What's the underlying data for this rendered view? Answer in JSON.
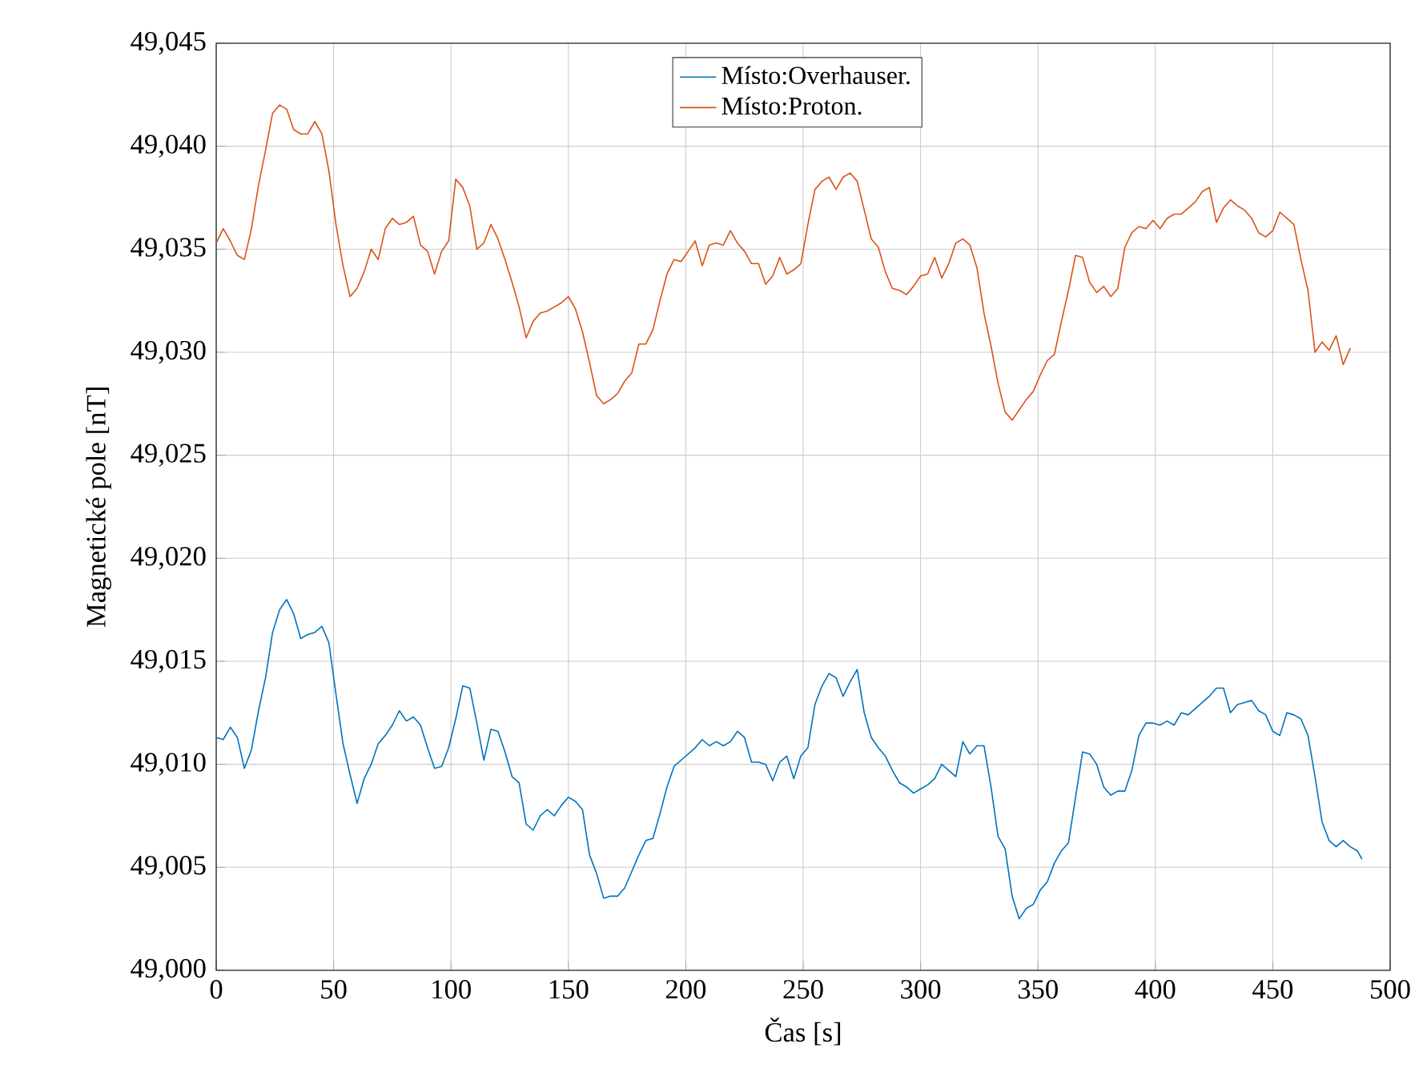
{
  "chart_data": {
    "type": "line",
    "xlabel": "Čas [s]",
    "ylabel": "Magnetické pole [nT]",
    "x": [
      0,
      3,
      6,
      9,
      12,
      15,
      18,
      21,
      24,
      27,
      30,
      33,
      36,
      39,
      42,
      45,
      48,
      51,
      54,
      57,
      60,
      63,
      66,
      69,
      72,
      75,
      78,
      81,
      84,
      87,
      90,
      93,
      96,
      99,
      102,
      105,
      108,
      111,
      114,
      117,
      120,
      123,
      126,
      129,
      132,
      135,
      138,
      141,
      144,
      147,
      150,
      153,
      156,
      159,
      162,
      165,
      168,
      171,
      174,
      177,
      180,
      183,
      186,
      189,
      192,
      195,
      198,
      201,
      204,
      207,
      210,
      213,
      216,
      219,
      222,
      225,
      228,
      231,
      234,
      237,
      240,
      243,
      246,
      249,
      252,
      255,
      258,
      261,
      264,
      267,
      270,
      273,
      276,
      279,
      282,
      285,
      288,
      291,
      294,
      297,
      300,
      303,
      306,
      309,
      312,
      315,
      318,
      321,
      324,
      327,
      330,
      333,
      336,
      339,
      342,
      345,
      348,
      351,
      354,
      357,
      360,
      363,
      366,
      369,
      372,
      375,
      378,
      381,
      384,
      387,
      390,
      393,
      396,
      399,
      402,
      405,
      408,
      411,
      414,
      417,
      420,
      423,
      426,
      429,
      432,
      435,
      438,
      441,
      444,
      447,
      450,
      453,
      456,
      459,
      462,
      465,
      468,
      471,
      474,
      477,
      480,
      483
    ],
    "series": [
      {
        "name": "Místo:Overhauser.",
        "color": "#0072bd",
        "x": [
          0,
          3,
          6,
          9,
          12,
          15,
          18,
          21,
          24,
          27,
          30,
          33,
          36,
          39,
          42,
          45,
          48,
          51,
          54,
          57,
          60,
          63,
          66,
          69,
          72,
          75,
          78,
          81,
          84,
          87,
          90,
          93,
          96,
          99,
          102,
          105,
          108,
          111,
          114,
          117,
          120,
          123,
          126,
          129,
          132,
          135,
          138,
          141,
          144,
          147,
          150,
          153,
          156,
          159,
          162,
          165,
          168,
          171,
          174,
          177,
          180,
          183,
          186,
          189,
          192,
          195,
          198,
          201,
          204,
          207,
          210,
          213,
          216,
          219,
          222,
          225,
          228,
          231,
          234,
          237,
          240,
          243,
          246,
          249,
          252,
          255,
          258,
          261,
          264,
          267,
          270,
          273,
          276,
          279,
          282,
          285,
          288,
          291,
          294,
          297,
          300,
          303,
          306,
          309,
          312,
          315,
          318,
          321,
          324,
          327,
          330,
          333,
          336,
          339,
          342,
          345,
          348,
          351,
          354,
          357,
          360,
          363,
          366,
          369,
          372,
          375,
          378,
          381,
          384,
          387,
          390,
          393,
          396,
          399,
          402,
          405,
          408,
          411,
          414,
          417,
          420,
          423,
          426,
          429,
          432,
          435,
          438,
          441,
          444,
          447,
          450,
          453,
          456,
          459,
          462,
          465,
          468,
          471,
          474,
          477,
          480,
          483,
          486,
          488
        ],
        "values": [
          49011.3,
          49011.2,
          49011.8,
          49011.3,
          49009.8,
          49010.7,
          49012.6,
          49014.2,
          49016.4,
          49017.5,
          49018.0,
          49017.3,
          49016.1,
          49016.3,
          49016.4,
          49016.7,
          49015.9,
          49013.4,
          49011.0,
          49009.5,
          49008.1,
          49009.3,
          49010.0,
          49011.0,
          49011.4,
          49011.9,
          49012.6,
          49012.1,
          49012.3,
          49011.9,
          49010.8,
          49009.8,
          49009.9,
          49010.8,
          49012.2,
          49013.8,
          49013.7,
          49012.0,
          49010.2,
          49011.7,
          49011.6,
          49010.6,
          49009.4,
          49009.1,
          49007.1,
          49006.8,
          49007.5,
          49007.8,
          49007.5,
          49008.0,
          49008.4,
          49008.2,
          49007.8,
          49005.6,
          49004.7,
          49003.5,
          49003.6,
          49003.6,
          49004.0,
          49004.8,
          49005.6,
          49006.3,
          49006.4,
          49007.6,
          49008.9,
          49009.9,
          49010.2,
          49010.5,
          49010.8,
          49011.2,
          49010.9,
          49011.1,
          49010.9,
          49011.1,
          49011.6,
          49011.3,
          49010.1,
          49010.1,
          49010.0,
          49009.2,
          49010.1,
          49010.4,
          49009.3,
          49010.4,
          49010.8,
          49012.9,
          49013.8,
          49014.4,
          49014.2,
          49013.3,
          49014.0,
          49014.6,
          49012.5,
          49011.3,
          49010.8,
          49010.4,
          49009.7,
          49009.1,
          49008.9,
          49008.6,
          49008.8,
          49009.0,
          49009.3,
          49010.0,
          49009.7,
          49009.4,
          49011.1,
          49010.5,
          49010.9,
          49010.9,
          49008.9,
          49006.5,
          49005.9,
          49003.6,
          49002.5,
          49003.0,
          49003.2,
          49003.9,
          49004.3,
          49005.2,
          49005.8,
          49006.2,
          49008.4,
          49010.6,
          49010.5,
          49010.0,
          49008.9,
          49008.5,
          49008.7,
          49008.7,
          49009.7,
          49011.4,
          49012.0,
          49012.0,
          49011.9,
          49012.1,
          49011.9,
          49012.5,
          49012.4,
          49012.7,
          49013.0,
          49013.3,
          49013.7,
          49013.7,
          49012.5,
          49012.9,
          49013.0,
          49013.1,
          49012.6,
          49012.4,
          49011.6,
          49011.4,
          49012.5,
          49012.4,
          49012.2,
          49011.4,
          49009.4,
          49007.2,
          49006.3,
          49006.0,
          49006.3,
          49006.0,
          49005.8,
          49005.4
        ]
      },
      {
        "name": "Místo:Proton.",
        "color": "#d95319",
        "values": [
          49035.3,
          49036.0,
          49035.4,
          49034.7,
          49034.5,
          49036.0,
          49038.1,
          49039.8,
          49041.6,
          49042.0,
          49041.8,
          49040.8,
          49040.6,
          49040.6,
          49041.2,
          49040.6,
          49038.8,
          49036.2,
          49034.2,
          49032.7,
          49033.1,
          49033.9,
          49035.0,
          49034.5,
          49036.0,
          49036.5,
          49036.2,
          49036.3,
          49036.6,
          49035.2,
          49034.9,
          49033.8,
          49034.9,
          49035.4,
          49038.4,
          49038.0,
          49037.1,
          49035.0,
          49035.3,
          49036.2,
          49035.5,
          49034.5,
          49033.4,
          49032.2,
          49030.7,
          49031.5,
          49031.9,
          49032.0,
          49032.2,
          49032.4,
          49032.7,
          49032.1,
          49031.0,
          49029.5,
          49027.9,
          49027.5,
          49027.7,
          49028.0,
          49028.6,
          49029.0,
          49030.4,
          49030.4,
          49031.1,
          49032.5,
          49033.8,
          49034.5,
          49034.4,
          49034.9,
          49035.4,
          49034.2,
          49035.2,
          49035.3,
          49035.2,
          49035.9,
          49035.3,
          49034.9,
          49034.3,
          49034.3,
          49033.3,
          49033.7,
          49034.6,
          49033.8,
          49034.0,
          49034.3,
          49036.2,
          49037.9,
          49038.3,
          49038.5,
          49037.9,
          49038.5,
          49038.7,
          49038.3,
          49036.9,
          49035.5,
          49035.1,
          49033.9,
          49033.1,
          49033.0,
          49032.8,
          49033.2,
          49033.7,
          49033.8,
          49034.6,
          49033.6,
          49034.3,
          49035.3,
          49035.5,
          49035.2,
          49034.1,
          49031.9,
          49030.3,
          49028.5,
          49027.1,
          49026.7,
          49027.2,
          49027.7,
          49028.1,
          49028.9,
          49029.6,
          49029.9,
          49031.5,
          49033.0,
          49034.7,
          49034.6,
          49033.4,
          49032.9,
          49033.2,
          49032.7,
          49033.1,
          49035.1,
          49035.8,
          49036.1,
          49036.0,
          49036.4,
          49036.0,
          49036.5,
          49036.7,
          49036.7,
          49037.0,
          49037.3,
          49037.8,
          49038.0,
          49036.3,
          49037.0,
          49037.4,
          49037.1,
          49036.9,
          49036.5,
          49035.8,
          49035.6,
          49035.9,
          49036.8,
          49036.5,
          49036.2,
          49034.5,
          49033.0,
          49030.0,
          49030.5,
          49030.1,
          49030.8,
          49029.4,
          49030.2
        ]
      }
    ],
    "xlim": [
      0,
      500
    ],
    "ylim": [
      49000,
      49045
    ],
    "xticks": [
      0,
      50,
      100,
      150,
      200,
      250,
      300,
      350,
      400,
      450,
      500
    ],
    "yticks": [
      {
        "value": 49000,
        "label": "49,000"
      },
      {
        "value": 49005,
        "label": "49,005"
      },
      {
        "value": 49010,
        "label": "49,010"
      },
      {
        "value": 49015,
        "label": "49,015"
      },
      {
        "value": 49020,
        "label": "49,020"
      },
      {
        "value": 49025,
        "label": "49,025"
      },
      {
        "value": 49030,
        "label": "49,030"
      },
      {
        "value": 49035,
        "label": "49,035"
      },
      {
        "value": 49040,
        "label": "49,040"
      },
      {
        "value": 49045,
        "label": "49,045"
      }
    ],
    "grid": true,
    "legend": "top"
  }
}
